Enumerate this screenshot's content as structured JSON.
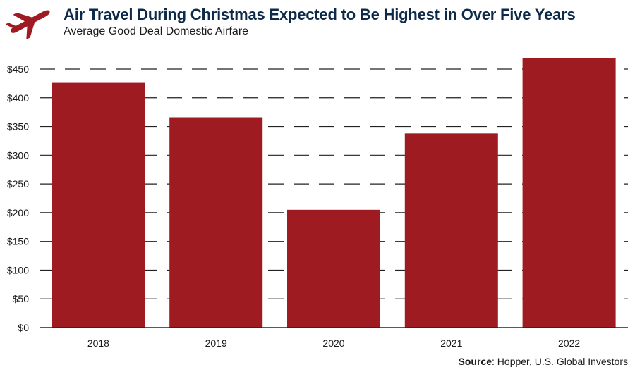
{
  "header": {
    "title": "Air Travel During Christmas Expected to Be Highest in Over Five Years",
    "subtitle": "Average Good Deal Domestic Airfare",
    "icon": "airplane-icon",
    "icon_color": "#9e1b22"
  },
  "footer": {
    "source_label": "Source",
    "source_text": ": Hopper, U.S. Global Investors"
  },
  "chart_data": {
    "type": "bar",
    "categories": [
      "2018",
      "2019",
      "2020",
      "2021",
      "2022"
    ],
    "values": [
      426,
      366,
      205,
      338,
      469
    ],
    "ylim": [
      0,
      450
    ],
    "yticks": [
      0,
      50,
      100,
      150,
      200,
      250,
      300,
      350,
      400,
      450
    ],
    "ytick_labels": [
      "$0",
      "$50",
      "$100",
      "$150",
      "$200",
      "$250",
      "$300",
      "$350",
      "$400",
      "$450"
    ],
    "grid": "dashed-horizontal",
    "bar_color": "#9e1b22",
    "legend": "none"
  }
}
